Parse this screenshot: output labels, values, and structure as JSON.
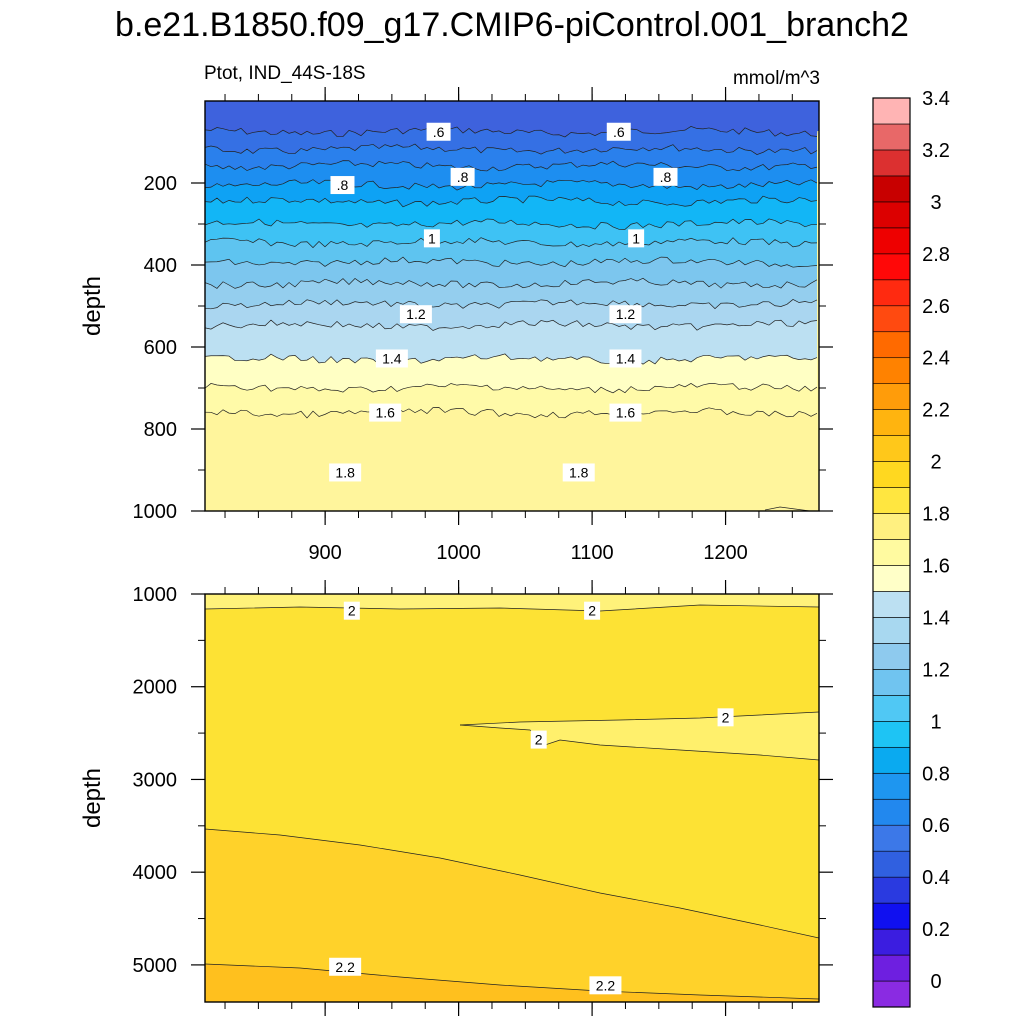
{
  "title": "b.e21.B1850.f09_g17.CMIP6-piControl.001_branch2",
  "panel_label": "Ptot, IND_44S-18S",
  "units": "mmol/m^3",
  "colors": {
    "colorbar": [
      "#8a2be2",
      "#6e1fe0",
      "#3b1de0",
      "#1010f0",
      "#2a3ae0",
      "#3060e0",
      "#3c78e8",
      "#2288ee",
      "#1e96f0",
      "#0aaaf0",
      "#1ec4f4",
      "#50c8f4",
      "#70c4f0",
      "#8ecaee",
      "#a8d8f0",
      "#bce0f2",
      "#ffffc8",
      "#fffaa0",
      "#fff080",
      "#ffe640",
      "#ffd820",
      "#ffc81a",
      "#ffb40f",
      "#ff9c0a",
      "#ff8200",
      "#ff6a00",
      "#ff4a10",
      "#ff2a10",
      "#ff0808",
      "#ee0000",
      "#dc0000",
      "#c80000",
      "#dc3030",
      "#e86868",
      "#ffb4b4"
    ]
  },
  "chart_data": [
    {
      "type": "contour",
      "panel": "upper",
      "title": "Ptot, IND_44S-18S",
      "ylabel": "depth",
      "xlim": [
        810,
        1270
      ],
      "ylim": [
        1000,
        0
      ],
      "xticks": [
        "900",
        "1000",
        "1100",
        "1200"
      ],
      "yticks": [
        "200",
        "400",
        "600",
        "800",
        "1000"
      ],
      "contour_levels": [
        0.6,
        0.7,
        0.8,
        0.9,
        1.0,
        1.1,
        1.2,
        1.3,
        1.4,
        1.5,
        1.6,
        1.7,
        1.8,
        1.9
      ],
      "contour_depths": [
        75,
        118,
        158,
        205,
        245,
        300,
        345,
        393,
        445,
        495,
        547,
        630,
        700,
        760
      ],
      "contour_labels": [
        {
          "text": ".6",
          "x": 985,
          "depth": 75
        },
        {
          "text": ".6",
          "x": 1120,
          "depth": 75
        },
        {
          "text": ".8",
          "x": 913,
          "depth": 205
        },
        {
          "text": ".8",
          "x": 1003,
          "depth": 185
        },
        {
          "text": ".8",
          "x": 1155,
          "depth": 185
        },
        {
          "text": "1",
          "x": 980,
          "depth": 335
        },
        {
          "text": "1",
          "x": 1133,
          "depth": 335
        },
        {
          "text": "1.2",
          "x": 968,
          "depth": 520
        },
        {
          "text": "1.2",
          "x": 1125,
          "depth": 520
        },
        {
          "text": "1.4",
          "x": 950,
          "depth": 628
        },
        {
          "text": "1.4",
          "x": 1125,
          "depth": 628
        },
        {
          "text": "1.6",
          "x": 945,
          "depth": 760
        },
        {
          "text": "1.6",
          "x": 1125,
          "depth": 760
        },
        {
          "text": "1.8",
          "x": 915,
          "depth": 906
        },
        {
          "text": "1.8",
          "x": 1090,
          "depth": 906
        }
      ]
    },
    {
      "type": "contour",
      "panel": "lower",
      "ylabel": "depth",
      "xlim": [
        810,
        1270
      ],
      "ylim": [
        5400,
        1000
      ],
      "yticks": [
        "1000",
        "2000",
        "3000",
        "4000",
        "5000"
      ],
      "contour_levels": [
        2.0,
        2.1,
        2.2
      ],
      "contour_labels": [
        {
          "text": "2",
          "x": 920,
          "depth": 1180
        },
        {
          "text": "2",
          "x": 1100,
          "depth": 1180
        },
        {
          "text": "2",
          "x": 1200,
          "depth": 2330
        },
        {
          "text": "2",
          "x": 1060,
          "depth": 2570
        },
        {
          "text": "2.2",
          "x": 915,
          "depth": 5020
        },
        {
          "text": "2.2",
          "x": 1110,
          "depth": 5220
        }
      ]
    }
  ],
  "colorbar": {
    "labels": [
      "0",
      "0.2",
      "0.4",
      "0.6",
      "0.8",
      "1",
      "1.2",
      "1.4",
      "1.6",
      "1.8",
      "2",
      "2.2",
      "2.4",
      "2.6",
      "2.8",
      "3",
      "3.2",
      "3.4"
    ]
  }
}
